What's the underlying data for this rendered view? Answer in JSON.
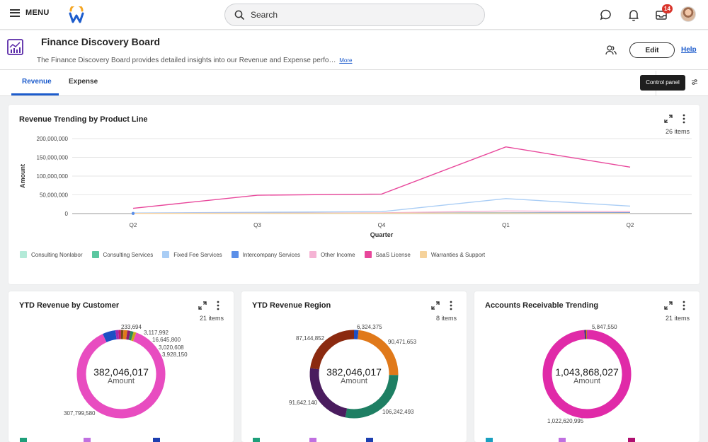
{
  "topbar": {
    "menu_label": "MENU",
    "search_placeholder": "Search",
    "inbox_badge": "14"
  },
  "page": {
    "title": "Finance Discovery Board",
    "description": "The Finance Discovery Board provides detailed insights into our Revenue and Expense perfo…",
    "more_label": "More",
    "edit_label": "Edit",
    "help_label": "Help"
  },
  "tabs": [
    {
      "label": "Revenue",
      "active": true
    },
    {
      "label": "Expense",
      "active": false
    }
  ],
  "control_panel_tooltip": "Control panel",
  "colors": {
    "accent": "#1d5ccc",
    "pink": "#e8479b",
    "magenta": "#e02aa8"
  },
  "chart_data": [
    {
      "type": "line",
      "title": "Revenue Trending by Product Line",
      "items_count": "26 items",
      "xlabel": "Quarter",
      "ylabel": "Amount",
      "categories": [
        "Q2",
        "Q3",
        "Q4",
        "Q1",
        "Q2"
      ],
      "ylim": [
        0,
        200000000
      ],
      "yticks": [
        "200,000,000",
        "150,000,000",
        "100,000,000",
        "50,000,000",
        "0"
      ],
      "grid": true,
      "legend_position": "bottom-left",
      "series": [
        {
          "name": "Consulting Nonlabor",
          "color": "#b3ead8",
          "values": [
            300000,
            800000,
            900000,
            1000000,
            800000
          ]
        },
        {
          "name": "Consulting Services",
          "color": "#5bc7a0",
          "values": [
            500000,
            1000000,
            1500000,
            2000000,
            1500000
          ]
        },
        {
          "name": "Fixed Fee Services",
          "color": "#a9cdf5",
          "values": [
            1500000,
            3500000,
            5000000,
            40000000,
            20000000
          ]
        },
        {
          "name": "Intercompany Services",
          "color": "#5b8fe8",
          "values": [
            400000,
            1000000,
            1500000,
            2000000,
            2500000
          ]
        },
        {
          "name": "Other Income",
          "color": "#f5b3d4",
          "values": [
            500000,
            1000000,
            2000000,
            7000000,
            5000000
          ]
        },
        {
          "name": "SaaS License",
          "color": "#e8479b",
          "values": [
            14000000,
            49000000,
            52000000,
            178000000,
            124000000
          ]
        },
        {
          "name": "Warranties & Support",
          "color": "#f5d29b",
          "values": [
            300000,
            700000,
            1000000,
            1500000,
            1000000
          ]
        }
      ]
    },
    {
      "type": "pie",
      "title": "YTD Revenue by Customer",
      "items_count": "21 items",
      "total": "382,046,017",
      "total_label": "Amount",
      "labels": [
        "233,694",
        "3,117,992",
        "16,645,800",
        "3,020,608",
        "3,928,150",
        "307,799,580"
      ],
      "slices": [
        {
          "value": 307799580,
          "color": "#e84cc0"
        },
        {
          "value": 16645800,
          "color": "#1d4fc4"
        },
        {
          "value": 3928150,
          "color": "#a22ab0"
        },
        {
          "value": 3117992,
          "color": "#c81b6b"
        },
        {
          "value": 3020608,
          "color": "#7a4a10"
        },
        {
          "value": 233694,
          "color": "#333333"
        },
        {
          "value": 5000000,
          "color": "#e0791a"
        },
        {
          "value": 4000000,
          "color": "#8e1c6e"
        },
        {
          "value": 4000000,
          "color": "#2a8a5a"
        },
        {
          "value": 3500000,
          "color": "#c7a61b"
        }
      ]
    },
    {
      "type": "pie",
      "title": "YTD Revenue Region",
      "items_count": "8 items",
      "total": "382,046,017",
      "total_label": "Amount",
      "labels": [
        "6,324,375",
        "90,471,653",
        "106,242,493",
        "91,642,140",
        "87,144,852"
      ],
      "slices": [
        {
          "value": 6324375,
          "color": "#1d4fc4"
        },
        {
          "value": 90471653,
          "color": "#e0791a"
        },
        {
          "value": 106242493,
          "color": "#1e7f63"
        },
        {
          "value": 91642140,
          "color": "#4a1c5e"
        },
        {
          "value": 87144852,
          "color": "#8b2a10"
        }
      ]
    },
    {
      "type": "pie",
      "title": "Accounts Receivable Trending",
      "items_count": "21 items",
      "total": "1,043,868,027",
      "total_label": "Amount",
      "labels": [
        "5,847,550",
        "1,022,620,995"
      ],
      "slices": [
        {
          "value": 1022620995,
          "color": "#e02aa8"
        },
        {
          "value": 5847550,
          "color": "#2a2a7a"
        },
        {
          "value": 4000000,
          "color": "#e0791a"
        },
        {
          "value": 3000000,
          "color": "#a22ab0"
        }
      ]
    }
  ]
}
